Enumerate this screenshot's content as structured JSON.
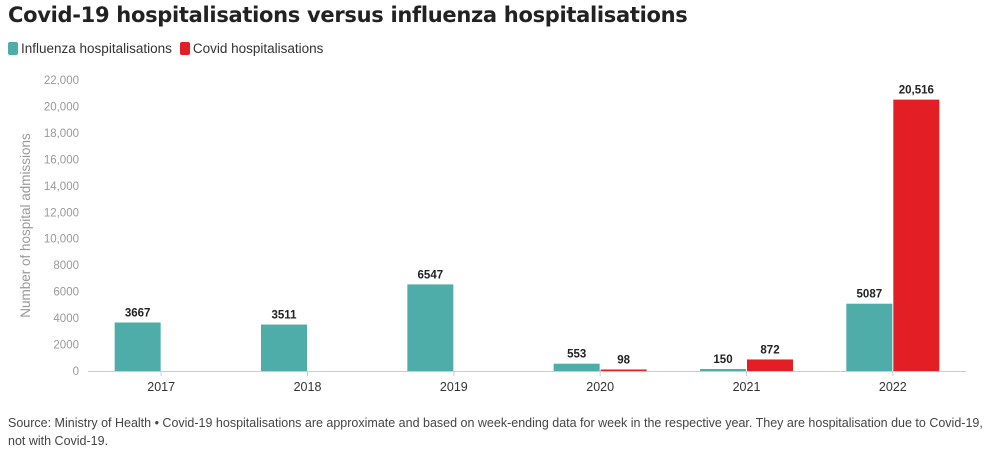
{
  "title": "Covid-19 hospitalisations versus influenza hospitalisations",
  "footer": "Source: Ministry of Health • Covid-19 hospitalisations are approximate and based on week-ending data for week in the respective year. They are hospitalisation due to Covid-19, not with Covid-19.",
  "chart_data": {
    "type": "bar",
    "categories": [
      "2017",
      "2018",
      "2019",
      "2020",
      "2021",
      "2022"
    ],
    "series": [
      {
        "name": "Influenza hospitalisations",
        "color": "#4fada9",
        "values": [
          3667,
          3511,
          6547,
          553,
          150,
          5087
        ],
        "labels": [
          "3667",
          "3511",
          "6547",
          "553",
          "150",
          "5087"
        ]
      },
      {
        "name": "Covid hospitalisations",
        "color": "#e31e24",
        "values": [
          null,
          null,
          null,
          98,
          872,
          20516
        ],
        "labels": [
          "",
          "",
          "",
          "98",
          "872",
          "20,516"
        ]
      }
    ],
    "ylabel": "Number of hospital admissions",
    "xlabel": "",
    "ylim": [
      0,
      22000
    ],
    "yticks": [
      "0",
      "2000",
      "4000",
      "6000",
      "8000",
      "10,000",
      "12,000",
      "14,000",
      "16,000",
      "18,000",
      "20,000",
      "22,000"
    ],
    "legend_position": "top-left",
    "grid": false
  }
}
